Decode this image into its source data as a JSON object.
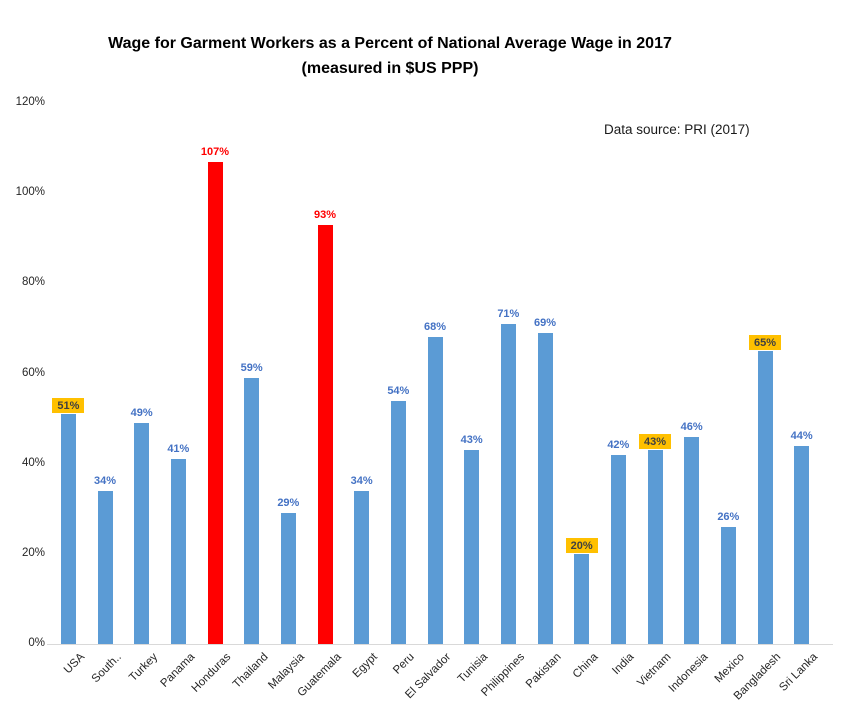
{
  "chart_data": {
    "type": "bar",
    "title": "Wage for Garment Workers as a Percent of National Average Wage in 2017",
    "subtitle": "(measured in $US PPP)",
    "annotation": "Data source: PRI (2017)",
    "xlabel": "",
    "ylabel": "",
    "ylim": [
      0,
      120
    ],
    "ytick_step": 20,
    "ytick_labels": [
      "0%",
      "20%",
      "40%",
      "60%",
      "80%",
      "100%",
      "120%"
    ],
    "grid": false,
    "legend": "none",
    "colors": {
      "bar_default": "#5B9BD5",
      "bar_emphasis": "#FF0000",
      "value_label_default": "#4472C4",
      "value_label_emphasis": "#FF0000",
      "value_label_highlight_text": "#404040",
      "value_label_highlight_bg": "#FFC000",
      "axis_line": "#D9D9D9",
      "tick_text": "#262626"
    },
    "categories": [
      "USA",
      "South..",
      "Turkey",
      "Panama",
      "Honduras",
      "Thailand",
      "Malaysia",
      "Guatemala",
      "Egypt",
      "Peru",
      "El Salvador",
      "Tunisia",
      "Philippines",
      "Pakistan",
      "China",
      "India",
      "Vietnam",
      "Indonesia",
      "Mexico",
      "Bangladesh",
      "Sri Lanka"
    ],
    "values": [
      51,
      34,
      49,
      41,
      107,
      59,
      29,
      93,
      34,
      54,
      68,
      43,
      71,
      69,
      20,
      42,
      43,
      46,
      26,
      65,
      44
    ],
    "bars": [
      {
        "category": "USA",
        "value": 51,
        "label": "51%",
        "style": "highlight"
      },
      {
        "category": "South..",
        "value": 34,
        "label": "34%",
        "style": "normal"
      },
      {
        "category": "Turkey",
        "value": 49,
        "label": "49%",
        "style": "normal"
      },
      {
        "category": "Panama",
        "value": 41,
        "label": "41%",
        "style": "normal"
      },
      {
        "category": "Honduras",
        "value": 107,
        "label": "107%",
        "style": "emphasis"
      },
      {
        "category": "Thailand",
        "value": 59,
        "label": "59%",
        "style": "normal"
      },
      {
        "category": "Malaysia",
        "value": 29,
        "label": "29%",
        "style": "normal"
      },
      {
        "category": "Guatemala",
        "value": 93,
        "label": "93%",
        "style": "emphasis"
      },
      {
        "category": "Egypt",
        "value": 34,
        "label": "34%",
        "style": "normal"
      },
      {
        "category": "Peru",
        "value": 54,
        "label": "54%",
        "style": "normal"
      },
      {
        "category": "El Salvador",
        "value": 68,
        "label": "68%",
        "style": "normal"
      },
      {
        "category": "Tunisia",
        "value": 43,
        "label": "43%",
        "style": "normal"
      },
      {
        "category": "Philippines",
        "value": 71,
        "label": "71%",
        "style": "normal"
      },
      {
        "category": "Pakistan",
        "value": 69,
        "label": "69%",
        "style": "normal"
      },
      {
        "category": "China",
        "value": 20,
        "label": "20%",
        "style": "highlight"
      },
      {
        "category": "India",
        "value": 42,
        "label": "42%",
        "style": "normal"
      },
      {
        "category": "Vietnam",
        "value": 43,
        "label": "43%",
        "style": "highlight"
      },
      {
        "category": "Indonesia",
        "value": 46,
        "label": "46%",
        "style": "normal"
      },
      {
        "category": "Mexico",
        "value": 26,
        "label": "26%",
        "style": "normal"
      },
      {
        "category": "Bangladesh",
        "value": 65,
        "label": "65%",
        "style": "highlight"
      },
      {
        "category": "Sri Lanka",
        "value": 44,
        "label": "44%",
        "style": "normal"
      }
    ]
  }
}
